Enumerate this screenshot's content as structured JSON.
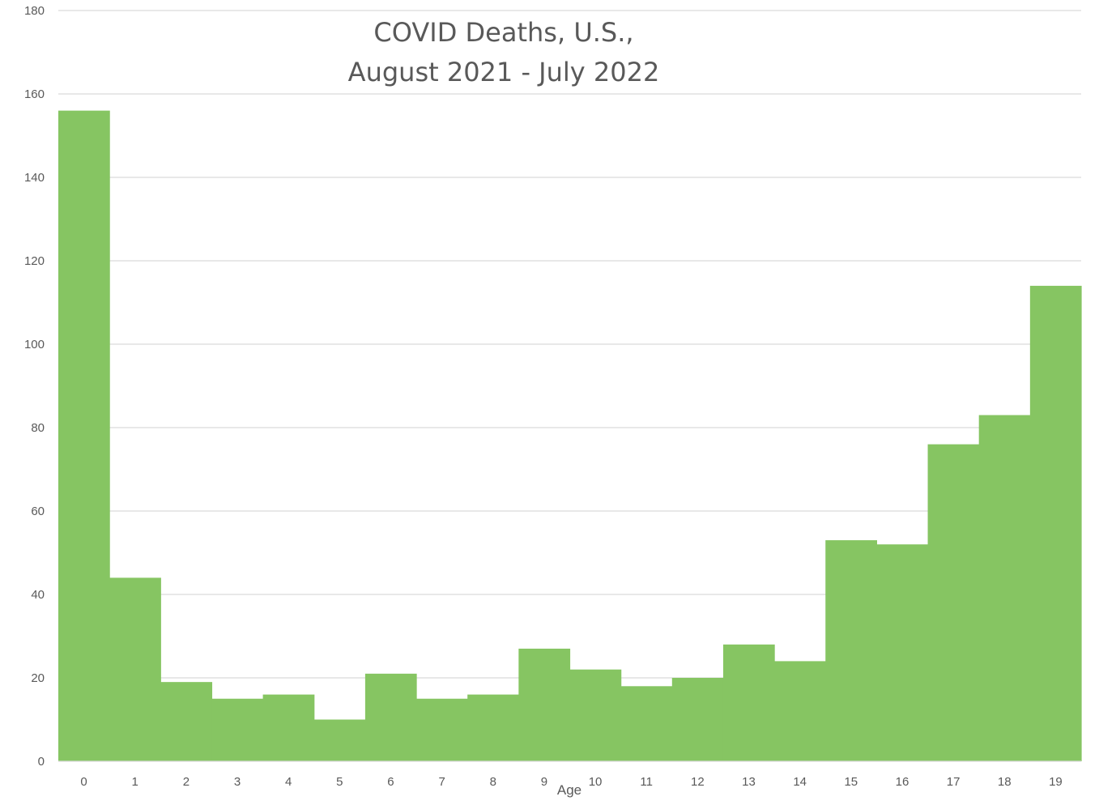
{
  "chart_data": {
    "type": "bar",
    "title_lines": [
      "COVID Deaths, U.S.,",
      "August 2021 - July 2022"
    ],
    "xlabel": "Age",
    "ylabel": "",
    "categories": [
      "0",
      "1",
      "2",
      "3",
      "4",
      "5",
      "6",
      "7",
      "8",
      "9",
      "10",
      "11",
      "12",
      "13",
      "14",
      "15",
      "16",
      "17",
      "18",
      "19"
    ],
    "values": [
      156,
      44,
      19,
      15,
      16,
      10,
      21,
      15,
      16,
      27,
      22,
      18,
      20,
      28,
      24,
      53,
      52,
      76,
      83,
      114
    ],
    "ylim": [
      0,
      180
    ],
    "yticks": [
      0,
      20,
      40,
      60,
      80,
      100,
      120,
      140,
      160,
      180
    ],
    "grid": true,
    "legend": "none",
    "bar_color": "#86c562",
    "gap_width": 0
  }
}
